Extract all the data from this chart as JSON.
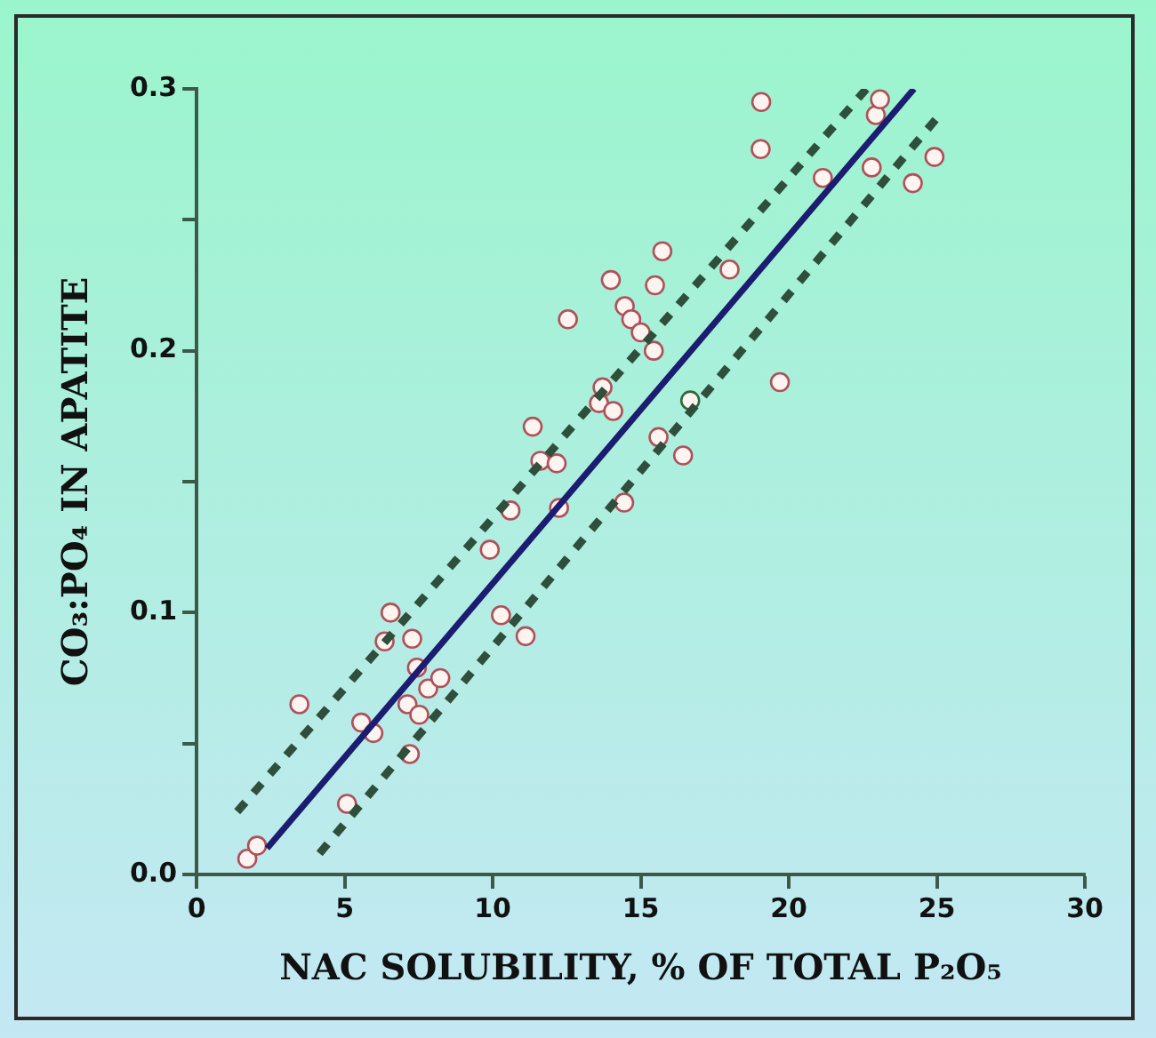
{
  "chart_data": {
    "type": "scatter",
    "xlabel": "NAC SOLUBILITY, % OF TOTAL P₂O₅",
    "ylabel": "CO₃:PO₄ IN APATITE",
    "xlim": [
      0,
      30
    ],
    "xticks": [
      0,
      5,
      10,
      15,
      20,
      25,
      30
    ],
    "ylim": [
      0,
      0.3
    ],
    "yticks": [
      {
        "value": 0,
        "label": "0.0"
      },
      {
        "value": 0.05,
        "label": null
      },
      {
        "value": 0.1,
        "label": "0.1"
      },
      {
        "value": 0.15,
        "label": null
      },
      {
        "value": 0.2,
        "label": "0.2"
      },
      {
        "value": 0.25,
        "label": null
      },
      {
        "value": 0.3,
        "label": "0.3"
      }
    ],
    "grid": false,
    "legend": false,
    "marker": "circle",
    "series": [
      {
        "color": "#b0505a",
        "x": [
          1.71,
          2.04,
          3.47,
          5.08,
          5.56,
          5.97,
          6.35,
          6.55,
          7.12,
          7.2,
          7.28,
          7.44,
          7.52,
          7.82,
          8.23,
          9.9,
          10.28,
          10.6,
          11.11,
          11.35,
          11.61,
          12.16,
          12.24,
          12.54,
          13.59,
          13.71,
          14.07,
          13.99,
          14.44,
          14.46,
          14.68,
          15.0,
          15.44,
          15.48,
          15.6,
          15.73,
          16.43,
          18.0,
          19.07,
          19.05,
          19.7,
          21.15,
          22.8,
          22.94,
          23.08,
          24.19,
          24.92
        ],
        "values": [
          0.006,
          0.011,
          0.065,
          0.027,
          0.058,
          0.054,
          0.089,
          0.1,
          0.065,
          0.046,
          0.09,
          0.079,
          0.061,
          0.071,
          0.075,
          0.124,
          0.099,
          0.139,
          0.091,
          0.171,
          0.158,
          0.157,
          0.14,
          0.212,
          0.18,
          0.186,
          0.177,
          0.227,
          0.142,
          0.217,
          0.212,
          0.207,
          0.2,
          0.225,
          0.167,
          0.238,
          0.16,
          0.231,
          0.295,
          0.277,
          0.188,
          0.266,
          0.27,
          0.29,
          0.296,
          0.264,
          0.274
        ]
      },
      {
        "color": "#2e6b3a",
        "x": [
          16.67
        ],
        "values": [
          0.181
        ]
      },
      {
        "type": "line",
        "color": "#1c1c70",
        "line_style": "solid",
        "marker": "none",
        "x": [
          2.38,
          24.23
        ],
        "values": [
          0.01,
          0.3
        ]
      },
      {
        "type": "line",
        "color": "#2f4f3c",
        "line_style": "dashed",
        "marker": "none",
        "x": [
          1.37,
          22.62
        ],
        "values": [
          0.024,
          0.3
        ]
      },
      {
        "type": "line",
        "color": "#2f4f3c",
        "line_style": "dashed",
        "marker": "none",
        "x": [
          4.15,
          25.16
        ],
        "values": [
          0.008,
          0.291
        ]
      }
    ]
  }
}
